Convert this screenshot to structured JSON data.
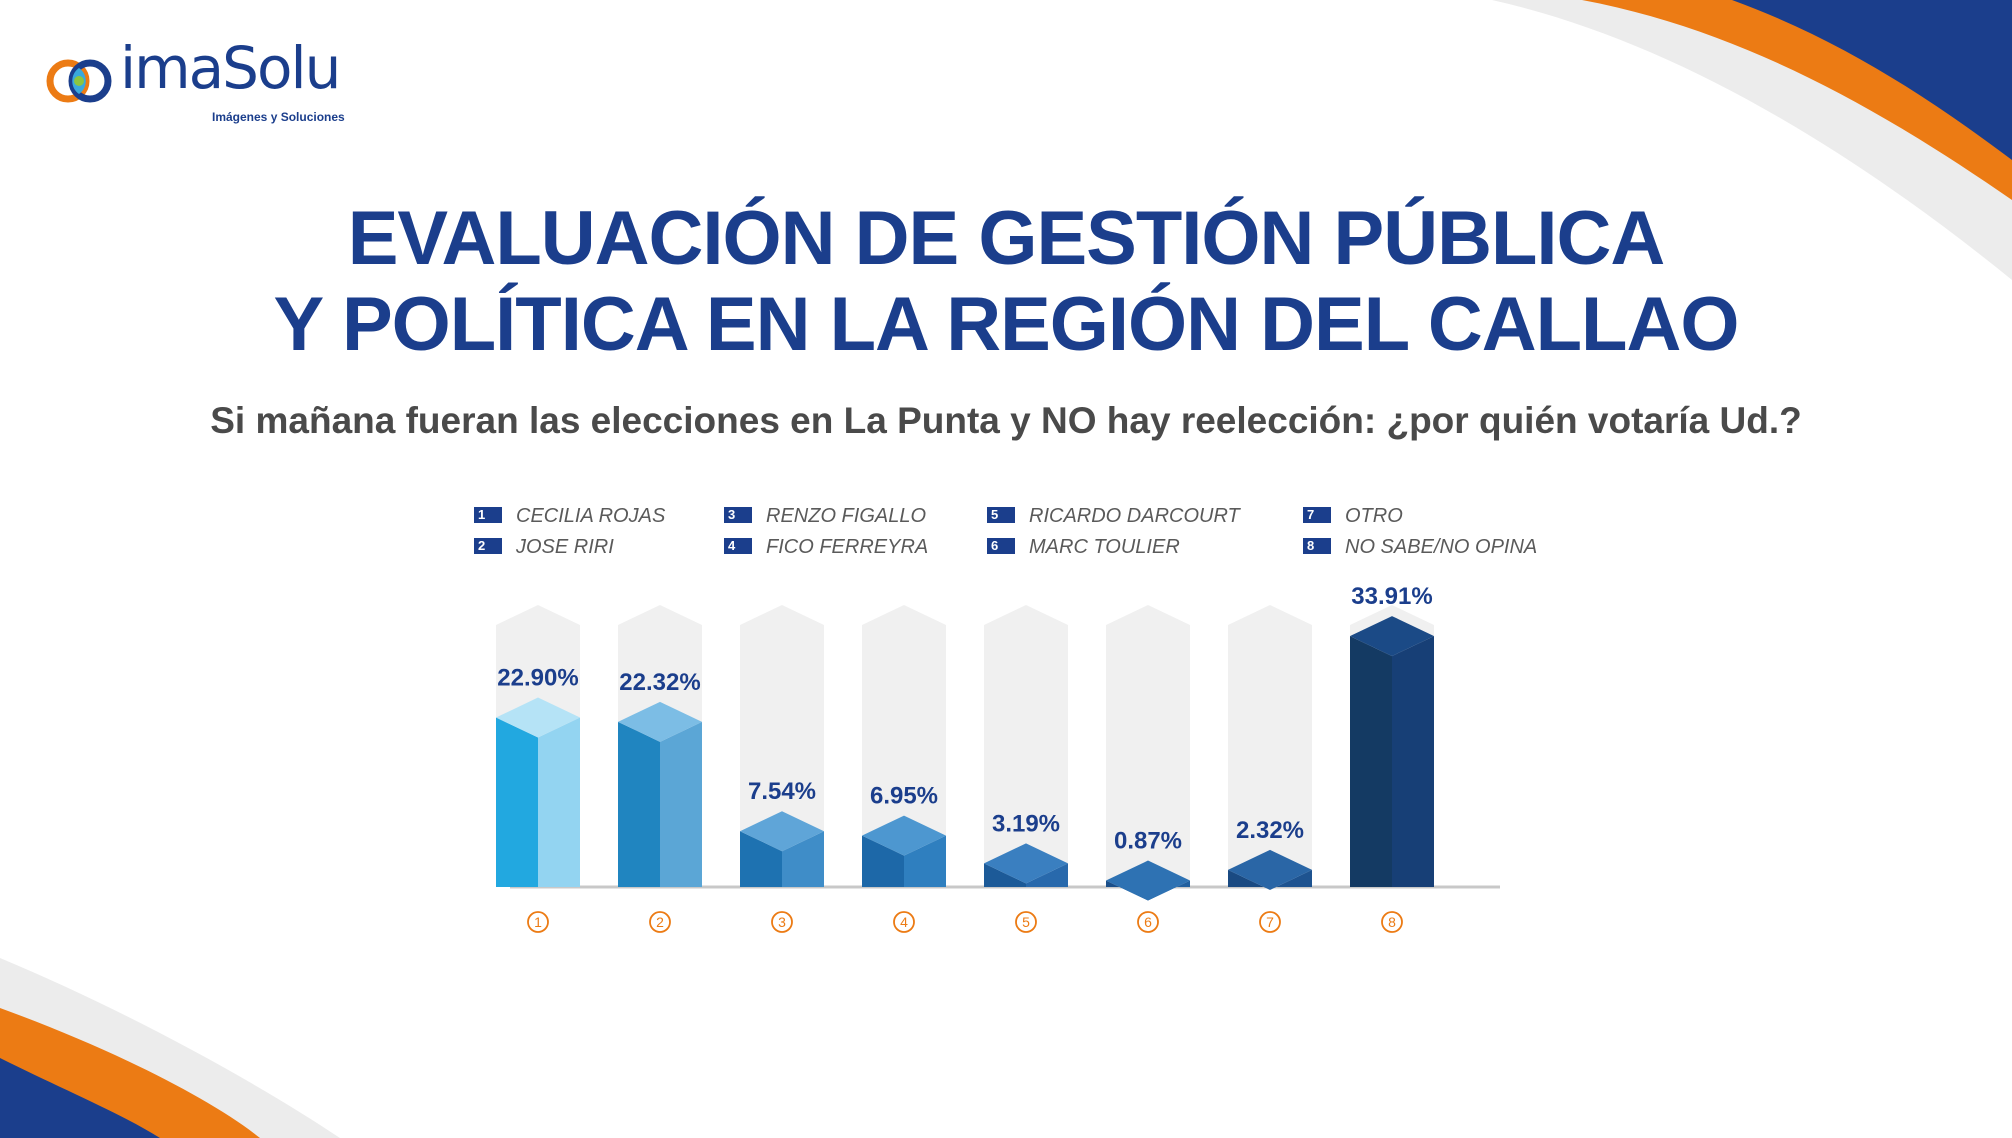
{
  "brand": {
    "name": "imaSolu",
    "tagline": "Imágenes y Soluciones"
  },
  "title_line1": "EVALUACIÓN DE GESTIÓN PÚBLICA",
  "title_line2": "Y POLÍTICA EN LA REGIÓN DEL CALLAO",
  "question": "Si mañana fueran las elecciones en La Punta y NO hay reelección: ¿por quién votaría Ud.?",
  "legend": [
    {
      "num": "1",
      "label": "CECILIA ROJAS"
    },
    {
      "num": "2",
      "label": "JOSE RIRI"
    },
    {
      "num": "3",
      "label": "RENZO FIGALLO"
    },
    {
      "num": "4",
      "label": "FICO FERREYRA"
    },
    {
      "num": "5",
      "label": "RICARDO DARCOURT"
    },
    {
      "num": "6",
      "label": "MARC TOULIER"
    },
    {
      "num": "7",
      "label": "OTRO"
    },
    {
      "num": "8",
      "label": "NO SABE/NO OPINA"
    }
  ],
  "colors": {
    "brand_blue": "#1b3e8c",
    "brand_orange": "#ec7b14",
    "track": "#f0f0f0",
    "baseline": "#c8c8c8",
    "bars": [
      {
        "front": "#22a8e0",
        "side": "#93d4f1",
        "top": "#b5e3f6"
      },
      {
        "front": "#2085c0",
        "side": "#5ba6d6",
        "top": "#7cbde5"
      },
      {
        "front": "#1e72b1",
        "side": "#3f8dc8",
        "top": "#5fa5d8"
      },
      {
        "front": "#1d68a8",
        "side": "#2f7fbf",
        "top": "#4d97d0"
      },
      {
        "front": "#1c5a98",
        "side": "#2869ac",
        "top": "#3a7fc0"
      },
      {
        "front": "#1b4f8a",
        "side": "#22609f",
        "top": "#2e72b3"
      },
      {
        "front": "#1a4a82",
        "side": "#1e5390",
        "top": "#2a66a6"
      },
      {
        "front": "#143a63",
        "side": "#173f76",
        "top": "#1b4a86"
      }
    ]
  },
  "chart_data": {
    "type": "bar",
    "categories": [
      "1",
      "2",
      "3",
      "4",
      "5",
      "6",
      "7",
      "8"
    ],
    "values": [
      22.9,
      22.32,
      7.54,
      6.95,
      3.19,
      0.87,
      2.32,
      33.91
    ],
    "value_labels": [
      "22.90%",
      "22.32%",
      "7.54%",
      "6.95%",
      "3.19%",
      "0.87%",
      "2.32%",
      "33.91%"
    ],
    "ylim": [
      0,
      50
    ],
    "grid": false,
    "legend_position": "top"
  }
}
